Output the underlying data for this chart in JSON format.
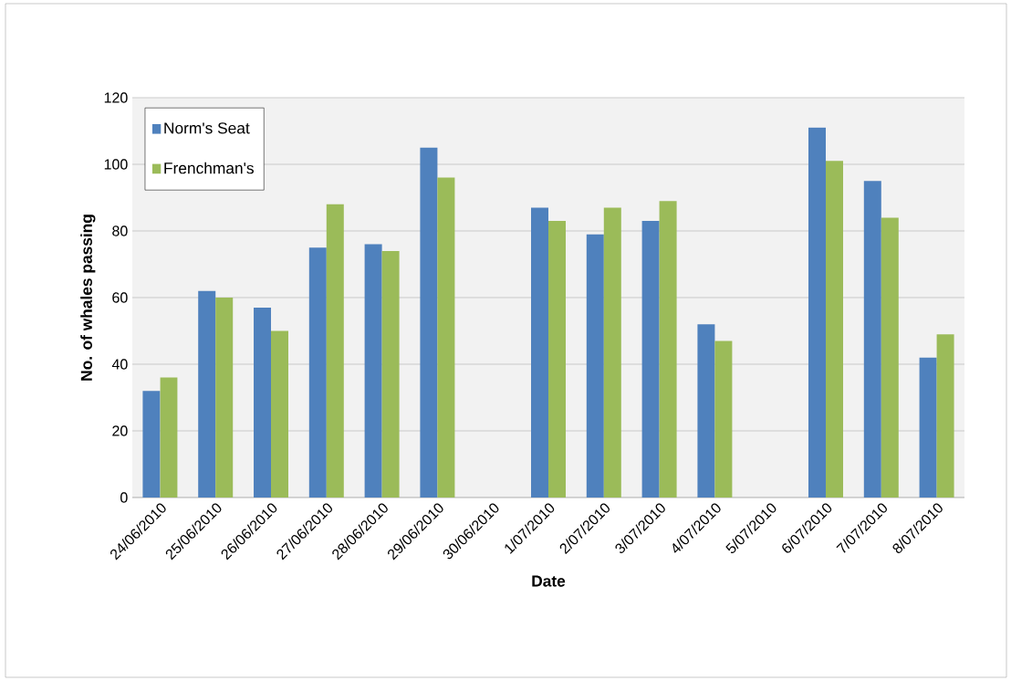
{
  "chart_data": {
    "type": "bar",
    "xlabel": "Date",
    "ylabel": "No. of whales passing",
    "categories": [
      "24/06/2010",
      "25/06/2010",
      "26/06/2010",
      "27/06/2010",
      "28/06/2010",
      "29/06/2010",
      "30/06/2010",
      "1/07/2010",
      "2/07/2010",
      "3/07/2010",
      "4/07/2010",
      "5/07/2010",
      "6/07/2010",
      "7/07/2010",
      "8/07/2010"
    ],
    "series": [
      {
        "name": "Norm's Seat",
        "color": "#4f81bd",
        "values": [
          32,
          62,
          57,
          75,
          76,
          105,
          null,
          87,
          79,
          83,
          52,
          null,
          111,
          95,
          42
        ]
      },
      {
        "name": "Frenchman's",
        "color": "#9bbb59",
        "values": [
          36,
          60,
          50,
          88,
          74,
          96,
          null,
          83,
          87,
          89,
          47,
          null,
          101,
          84,
          49
        ]
      }
    ],
    "ylim": [
      0,
      120
    ],
    "yticks": [
      0,
      20,
      40,
      60,
      80,
      100,
      120
    ],
    "grid": "y",
    "legend": "top left"
  }
}
